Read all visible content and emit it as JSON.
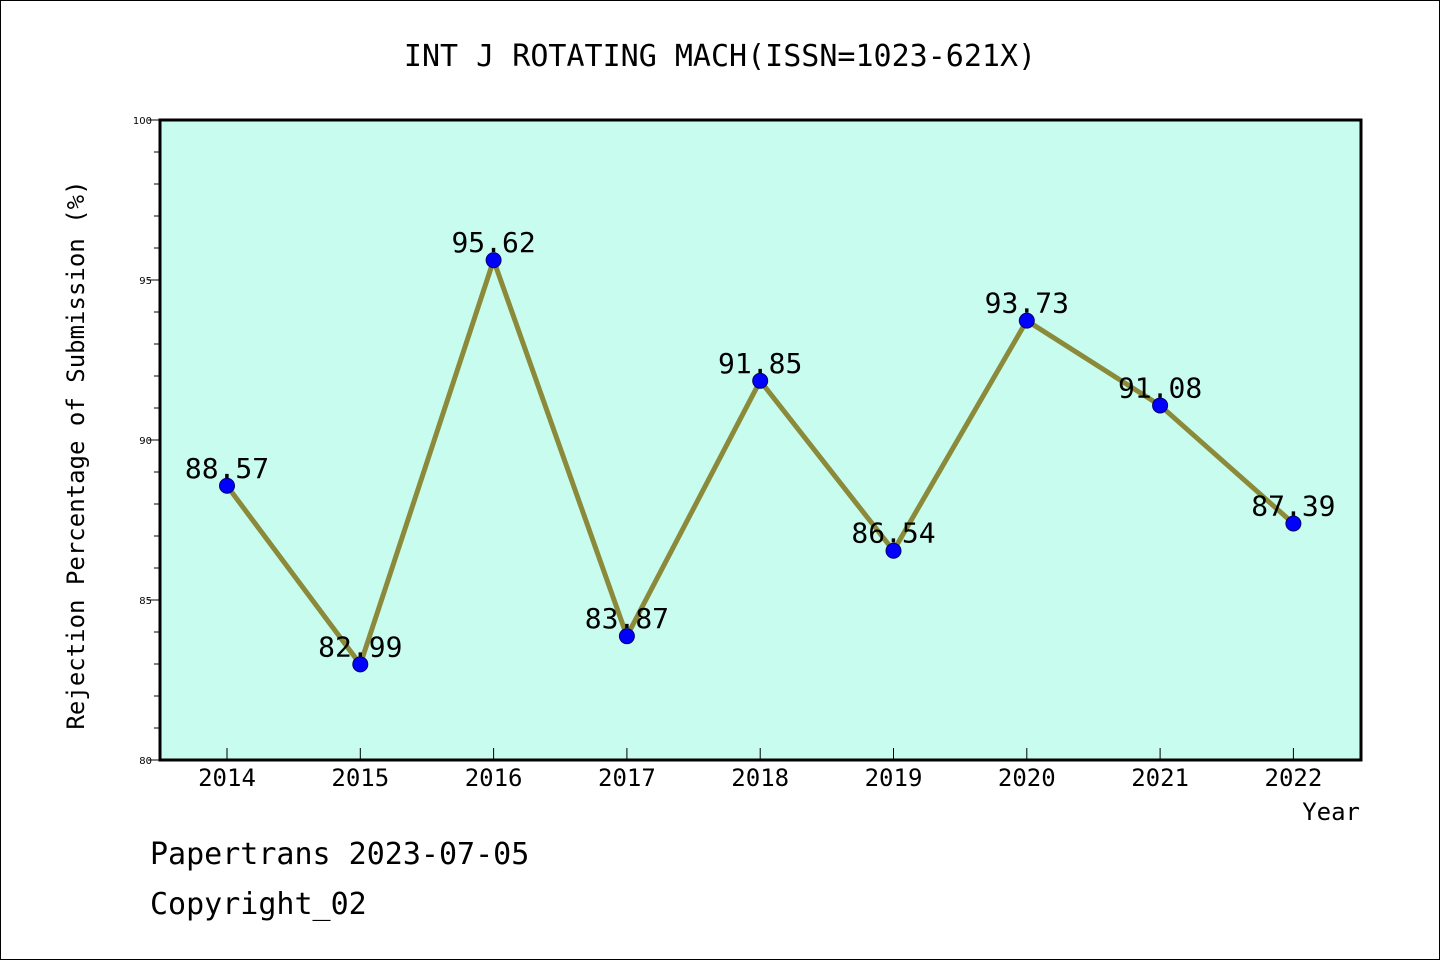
{
  "chart_data": {
    "type": "line",
    "title": "INT J ROTATING MACH(ISSN=1023-621X)",
    "xlabel": "Year",
    "ylabel": "Rejection Percentage of Submission (%)",
    "categories": [
      "2014",
      "2015",
      "2016",
      "2017",
      "2018",
      "2019",
      "2020",
      "2021",
      "2022"
    ],
    "values": [
      88.57,
      82.99,
      95.62,
      83.87,
      91.85,
      86.54,
      93.73,
      91.08,
      87.39
    ],
    "data_labels": [
      "88.57",
      "82.99",
      "95.62",
      "83.87",
      "91.85",
      "86.54",
      "93.73",
      "91.08",
      "87.39"
    ],
    "ylim": [
      80,
      100
    ],
    "yticks": [
      80,
      85,
      90,
      95,
      100
    ],
    "ytick_labels": [
      "80",
      "85",
      "90",
      "95",
      "100"
    ],
    "grid": false,
    "colors": {
      "plot_background": "#c8fcee",
      "line": "#8b8a3a",
      "marker": "#0000ff"
    }
  },
  "footer": {
    "line1": "Papertrans 2023-07-05",
    "line2": "Copyright_02"
  }
}
